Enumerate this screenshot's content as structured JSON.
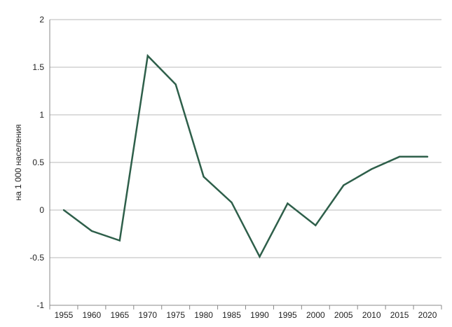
{
  "chart_data": {
    "type": "line",
    "title": "",
    "xlabel": "",
    "ylabel": "на 1 000 населения",
    "categories": [
      "1955",
      "1960",
      "1965",
      "1970",
      "1975",
      "1980",
      "1985",
      "1990",
      "1995",
      "2000",
      "2005",
      "2010",
      "2015",
      "2020"
    ],
    "series": [
      {
        "values": [
          0.0,
          -0.22,
          -0.32,
          1.62,
          1.32,
          0.35,
          0.08,
          -0.49,
          0.07,
          -0.16,
          0.26,
          0.43,
          0.56,
          0.56
        ],
        "color": "#2e5f4a"
      }
    ],
    "ylim": [
      -1,
      2
    ],
    "yticks": [
      -1,
      -0.5,
      0,
      0.5,
      1,
      1.5,
      2
    ],
    "ytick_labels": [
      "-1",
      "-0.5",
      "0",
      "0.5",
      "1",
      "1.5",
      "2"
    ],
    "grid": true,
    "legend": "none"
  }
}
